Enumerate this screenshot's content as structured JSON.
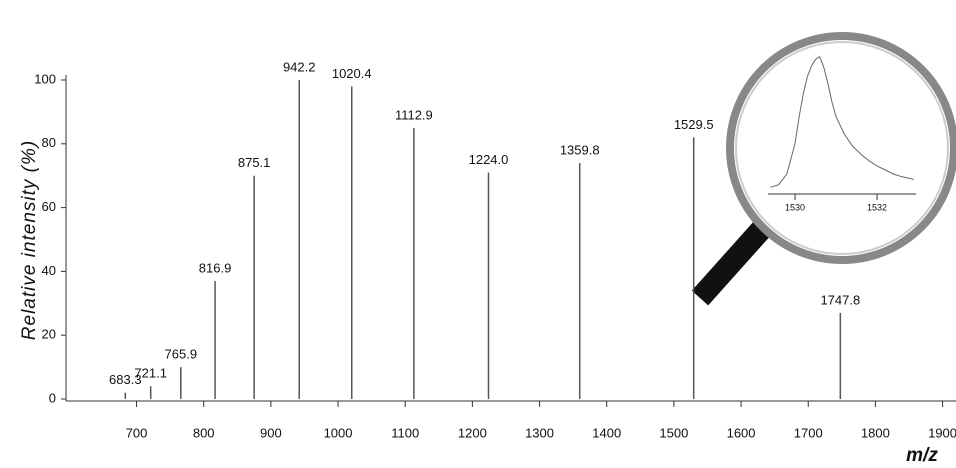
{
  "chart_data": [
    {
      "type": "stem",
      "x_label": "m/z",
      "y_label": "Relative intensity (%)",
      "x": [
        683.3,
        721.1,
        765.9,
        816.9,
        875.1,
        942.2,
        1020.4,
        1112.9,
        1224.0,
        1359.8,
        1529.5,
        1747.8
      ],
      "x_labels": [
        "683.3",
        "721.1",
        "765.9",
        "816.9",
        "875.1",
        "942.2",
        "1020.4",
        "1112.9",
        "1224.0",
        "1359.8",
        "1529.5",
        "1747.8"
      ],
      "values": [
        2,
        4,
        10,
        37,
        70,
        100,
        98,
        85,
        71,
        74,
        82,
        27
      ],
      "color": "#555555",
      "xlim": [
        595,
        1920
      ],
      "xticks": [
        700,
        800,
        900,
        1000,
        1100,
        1200,
        1300,
        1400,
        1500,
        1600,
        1700,
        1800,
        1900
      ],
      "ylim": [
        0,
        100
      ],
      "yticks": [
        0,
        20,
        40,
        60,
        80,
        100
      ]
    },
    {
      "type": "line",
      "x": [
        1529.4,
        1529.6,
        1529.8,
        1530.0,
        1530.1,
        1530.2,
        1530.3,
        1530.4,
        1530.5,
        1530.6,
        1530.7,
        1530.8,
        1530.9,
        1531.0,
        1531.2,
        1531.4,
        1531.6,
        1531.8,
        1532.0,
        1532.2,
        1532.4,
        1532.6,
        1532.9
      ],
      "values": [
        2,
        4,
        12,
        35,
        55,
        72,
        85,
        93,
        98,
        100,
        92,
        80,
        66,
        55,
        42,
        33,
        27,
        22,
        18,
        15,
        12,
        10,
        8
      ],
      "color": "#666666",
      "xlim": [
        1529.34,
        1532.95
      ],
      "xticks": [
        1530,
        1532
      ],
      "ylim": [
        0,
        105
      ]
    }
  ]
}
